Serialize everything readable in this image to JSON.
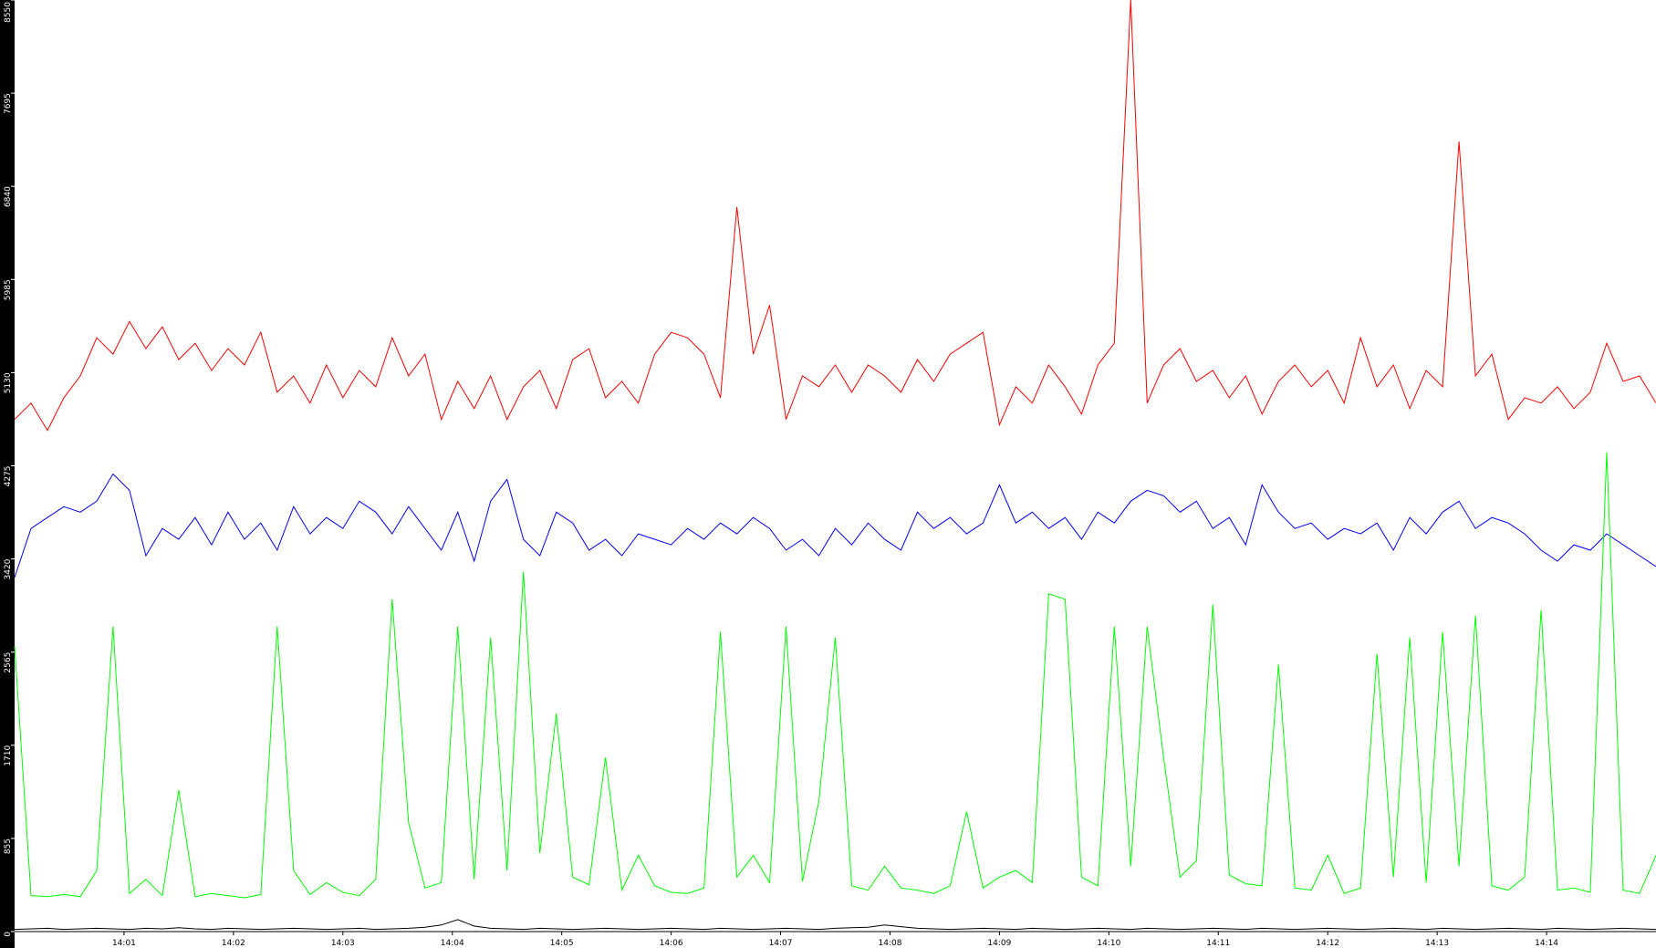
{
  "chart_data": {
    "type": "line",
    "xlim": [
      0,
      15
    ],
    "xticks": [
      {
        "value": 1,
        "label": "14:01"
      },
      {
        "value": 2,
        "label": "14:02"
      },
      {
        "value": 3,
        "label": "14:03"
      },
      {
        "value": 4,
        "label": "14:04"
      },
      {
        "value": 5,
        "label": "14:05"
      },
      {
        "value": 6,
        "label": "14:06"
      },
      {
        "value": 7,
        "label": "14:07"
      },
      {
        "value": 8,
        "label": "14:08"
      },
      {
        "value": 9,
        "label": "14:09"
      },
      {
        "value": 10,
        "label": "14:10"
      },
      {
        "value": 11,
        "label": "14:11"
      },
      {
        "value": 12,
        "label": "14:12"
      },
      {
        "value": 13,
        "label": "14:13"
      },
      {
        "value": 14,
        "label": "14:14"
      }
    ],
    "ylim": [
      0,
      8550
    ],
    "yticks": [
      0,
      855,
      1710,
      2565,
      3420,
      4275,
      5130,
      5985,
      6840,
      7695,
      8550
    ],
    "x": [
      0,
      0.15,
      0.3,
      0.45,
      0.6,
      0.75,
      0.9,
      1.05,
      1.2,
      1.35,
      1.5,
      1.65,
      1.8,
      1.95,
      2.1,
      2.25,
      2.4,
      2.55,
      2.7,
      2.85,
      3,
      3.15,
      3.3,
      3.45,
      3.6,
      3.75,
      3.9,
      4.05,
      4.2,
      4.35,
      4.5,
      4.65,
      4.8,
      4.95,
      5.1,
      5.25,
      5.4,
      5.55,
      5.7,
      5.85,
      6,
      6.15,
      6.3,
      6.45,
      6.6,
      6.75,
      6.9,
      7.05,
      7.2,
      7.35,
      7.5,
      7.65,
      7.8,
      7.95,
      8.1,
      8.25,
      8.4,
      8.55,
      8.7,
      8.85,
      9,
      9.15,
      9.3,
      9.45,
      9.6,
      9.75,
      9.9,
      10.05,
      10.2,
      10.35,
      10.5,
      10.65,
      10.8,
      10.95,
      11.1,
      11.25,
      11.4,
      11.55,
      11.7,
      11.85,
      12,
      12.15,
      12.3,
      12.45,
      12.6,
      12.75,
      12.9,
      13.05,
      13.2,
      13.35,
      13.5,
      13.65,
      13.8,
      13.95,
      14.1,
      14.25,
      14.4,
      14.55,
      14.7,
      14.85,
      15
    ],
    "series": [
      {
        "color": "#ff0000",
        "values": [
          4700,
          4850,
          4600,
          4900,
          5100,
          5450,
          5300,
          5600,
          5350,
          5550,
          5250,
          5400,
          5150,
          5350,
          5200,
          5500,
          4950,
          5100,
          4850,
          5200,
          4900,
          5150,
          5000,
          5450,
          5100,
          5300,
          4700,
          5050,
          4800,
          5100,
          4700,
          5000,
          5150,
          4800,
          5250,
          5350,
          4900,
          5050,
          4850,
          5300,
          5500,
          5450,
          5300,
          4900,
          6650,
          5300,
          5750,
          4700,
          5100,
          5000,
          5200,
          4950,
          5200,
          5100,
          4950,
          5250,
          5050,
          5300,
          5400,
          5500,
          4650,
          5000,
          4850,
          5200,
          5000,
          4750,
          5200,
          5400,
          8550,
          4850,
          5200,
          5350,
          5050,
          5150,
          4900,
          5100,
          4750,
          5050,
          5200,
          5000,
          5150,
          4850,
          5450,
          5000,
          5200,
          4800,
          5150,
          5000,
          7250,
          5100,
          5300,
          4700,
          4900,
          4850,
          5000,
          4800,
          4950,
          5400,
          5050,
          5100,
          4850
        ]
      },
      {
        "color": "#0000ff",
        "values": [
          3250,
          3700,
          3800,
          3900,
          3850,
          3950,
          4200,
          4050,
          3450,
          3700,
          3600,
          3800,
          3550,
          3850,
          3600,
          3750,
          3500,
          3900,
          3650,
          3800,
          3700,
          3950,
          3850,
          3650,
          3900,
          3700,
          3500,
          3850,
          3400,
          3950,
          4150,
          3600,
          3450,
          3850,
          3750,
          3500,
          3600,
          3450,
          3650,
          3600,
          3550,
          3700,
          3600,
          3750,
          3650,
          3800,
          3700,
          3500,
          3600,
          3450,
          3700,
          3550,
          3750,
          3600,
          3500,
          3850,
          3700,
          3800,
          3650,
          3750,
          4100,
          3750,
          3850,
          3700,
          3800,
          3600,
          3850,
          3750,
          3950,
          4050,
          4000,
          3850,
          3950,
          3700,
          3800,
          3550,
          4100,
          3850,
          3700,
          3750,
          3600,
          3700,
          3650,
          3750,
          3500,
          3800,
          3650,
          3850,
          3950,
          3700,
          3800,
          3750,
          3650,
          3500,
          3400,
          3550,
          3500,
          3650,
          3550,
          3450,
          3350
        ]
      },
      {
        "color": "#00ff00",
        "values": [
          2620,
          330,
          320,
          340,
          320,
          560,
          2800,
          350,
          480,
          330,
          1300,
          320,
          350,
          330,
          310,
          340,
          2800,
          560,
          340,
          450,
          360,
          330,
          480,
          3050,
          1000,
          400,
          450,
          2800,
          480,
          2700,
          560,
          3300,
          720,
          2000,
          500,
          430,
          1600,
          380,
          700,
          420,
          360,
          350,
          400,
          2750,
          500,
          700,
          450,
          2800,
          460,
          1200,
          2700,
          420,
          380,
          600,
          400,
          380,
          350,
          420,
          1100,
          400,
          500,
          560,
          450,
          3100,
          3050,
          500,
          420,
          2800,
          600,
          2800,
          1600,
          500,
          650,
          3000,
          520,
          440,
          420,
          2450,
          400,
          380,
          700,
          350,
          400,
          2550,
          500,
          2700,
          450,
          2750,
          600,
          2900,
          420,
          380,
          500,
          2950,
          380,
          400,
          360,
          4400,
          380,
          350,
          700
        ]
      },
      {
        "color": "#000000",
        "values": [
          20,
          25,
          30,
          20,
          25,
          30,
          25,
          20,
          30,
          25,
          35,
          25,
          20,
          30,
          25,
          20,
          25,
          30,
          25,
          20,
          25,
          30,
          20,
          25,
          30,
          40,
          60,
          110,
          50,
          30,
          25,
          20,
          30,
          25,
          20,
          25,
          30,
          25,
          20,
          25,
          30,
          25,
          20,
          30,
          25,
          20,
          25,
          30,
          25,
          20,
          30,
          35,
          40,
          60,
          45,
          30,
          25,
          20,
          25,
          30,
          25,
          20,
          30,
          25,
          20,
          25,
          30,
          25,
          20,
          30,
          25,
          20,
          25,
          30,
          25,
          20,
          30,
          25,
          20,
          25,
          30,
          25,
          20,
          25,
          30,
          25,
          20,
          30,
          25,
          20,
          25,
          30,
          25,
          20,
          30,
          25,
          20,
          25,
          30,
          25,
          20
        ]
      }
    ]
  }
}
